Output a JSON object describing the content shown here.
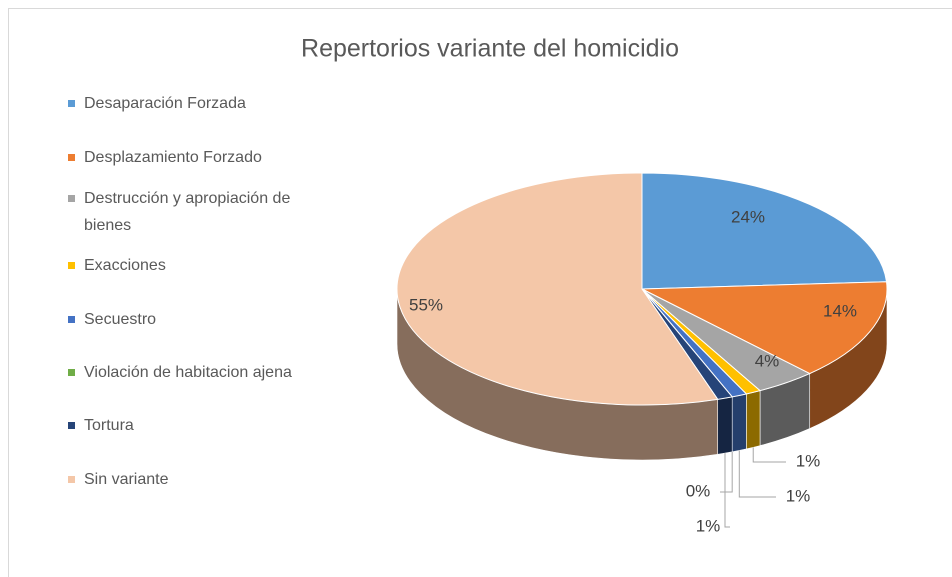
{
  "chart_data": {
    "type": "pie",
    "title": "Repertorios variante del homicidio",
    "categories": [
      "Desaparación Forzada",
      "Desplazamiento Forzado",
      "Destrucción y apropiación de bienes",
      "Exacciones",
      "Secuestro",
      "Violación de habitacion ajena",
      "Tortura",
      "Sin variante"
    ],
    "values": [
      24,
      14,
      4,
      1,
      1,
      0,
      1,
      55
    ],
    "value_labels": [
      "24%",
      "14%",
      "4%",
      "1%",
      "1%",
      "0%",
      "1%",
      "55%"
    ],
    "colors": [
      "#5b9bd5",
      "#ed7d31",
      "#a5a5a5",
      "#ffc000",
      "#4472c4",
      "#70ad47",
      "#264478",
      "#f4c7a8"
    ],
    "legend": "left"
  }
}
